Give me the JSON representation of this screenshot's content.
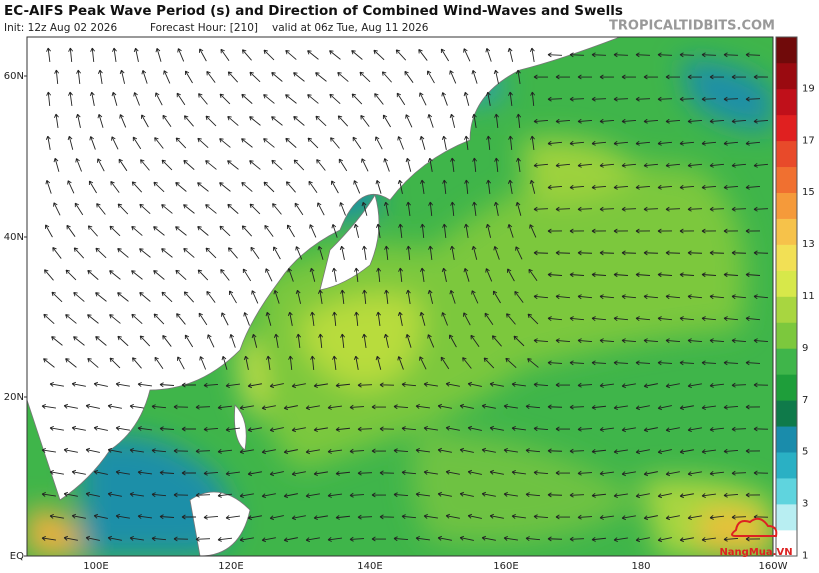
{
  "header": {
    "title": "EC-AIFS Peak Wave Period (s) and Direction of Combined Wind-Waves and Swells",
    "init": "Init: 12z Aug 02 2026",
    "forecast_hour": "Forecast Hour: [210]",
    "valid": "valid at 06z Tue, Aug 11 2026",
    "watermark": "TROPICALTIDBITS.COM"
  },
  "map": {
    "lat_labels": [
      "60N",
      "40N",
      "20N",
      "EQ"
    ],
    "lon_labels": [
      "100E",
      "120E",
      "140E",
      "160E",
      "180",
      "160W"
    ]
  },
  "colorbar": {
    "labels": [
      19,
      17,
      15,
      13,
      11,
      9,
      7,
      5,
      3,
      1
    ]
  },
  "logo": "NangMua.VN"
}
